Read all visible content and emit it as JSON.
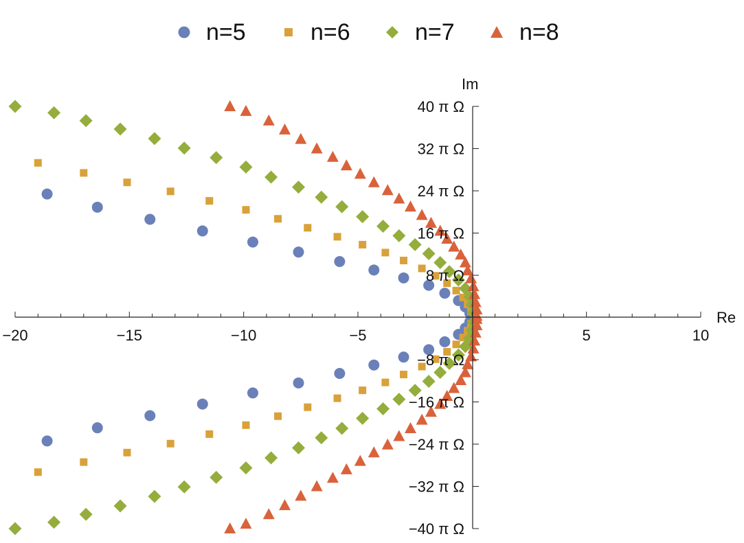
{
  "chart_data": {
    "type": "scatter",
    "xlabel": "Re",
    "ylabel": "Im",
    "xlim": [
      -20,
      10
    ],
    "ylim": [
      -40,
      40
    ],
    "x_ticks": [
      -20,
      -15,
      -10,
      -5,
      5,
      10
    ],
    "x_tick_labels": [
      "−20",
      "−15",
      "−10",
      "−5",
      "5",
      "10"
    ],
    "y_ticks": [
      -40,
      -32,
      -24,
      -16,
      -8,
      8,
      16,
      24,
      32,
      40
    ],
    "y_tick_labels": [
      "−40 π Ω",
      "−32 π Ω",
      "−24 π Ω",
      "−16 π Ω",
      "−8 π Ω",
      "8 π Ω",
      "16 π Ω",
      "24 π Ω",
      "32 π Ω",
      "40 π Ω"
    ],
    "y_unit": "π Ω",
    "legend_position": "top",
    "grid": false,
    "series": [
      {
        "name": "n=5",
        "marker": "circle",
        "color": "#6a80b9",
        "points": [
          [
            -18.6,
            23.4
          ],
          [
            -16.4,
            20.9
          ],
          [
            -14.1,
            18.6
          ],
          [
            -11.8,
            16.4
          ],
          [
            -9.6,
            14.3
          ],
          [
            -7.6,
            12.4
          ],
          [
            -5.8,
            10.6
          ],
          [
            -4.3,
            9.0
          ],
          [
            -3.0,
            7.5
          ],
          [
            -1.9,
            6.1
          ],
          [
            -1.2,
            4.6
          ],
          [
            -0.6,
            3.2
          ],
          [
            -0.3,
            2.0
          ],
          [
            -0.1,
            0.8
          ],
          [
            -18.6,
            -23.4
          ],
          [
            -16.4,
            -20.9
          ],
          [
            -14.1,
            -18.6
          ],
          [
            -11.8,
            -16.4
          ],
          [
            -9.6,
            -14.3
          ],
          [
            -7.6,
            -12.4
          ],
          [
            -5.8,
            -10.6
          ],
          [
            -4.3,
            -9.0
          ],
          [
            -3.0,
            -7.5
          ],
          [
            -1.9,
            -6.1
          ],
          [
            -1.2,
            -4.6
          ],
          [
            -0.6,
            -3.2
          ],
          [
            -0.3,
            -2.0
          ],
          [
            -0.1,
            -0.8
          ]
        ]
      },
      {
        "name": "n=6",
        "marker": "square",
        "color": "#d9a13a",
        "points": [
          [
            -19.0,
            29.3
          ],
          [
            -17.0,
            27.4
          ],
          [
            -15.1,
            25.6
          ],
          [
            -13.2,
            23.9
          ],
          [
            -11.5,
            22.1
          ],
          [
            -9.9,
            20.4
          ],
          [
            -8.5,
            18.7
          ],
          [
            -7.2,
            17.0
          ],
          [
            -5.9,
            15.3
          ],
          [
            -4.8,
            13.8
          ],
          [
            -3.8,
            12.3
          ],
          [
            -3.0,
            10.8
          ],
          [
            -2.2,
            9.3
          ],
          [
            -1.6,
            7.9
          ],
          [
            -1.1,
            6.5
          ],
          [
            -0.7,
            5.1
          ],
          [
            -0.4,
            3.8
          ],
          [
            -0.2,
            2.5
          ],
          [
            -0.05,
            1.2
          ],
          [
            -19.0,
            -29.3
          ],
          [
            -17.0,
            -27.4
          ],
          [
            -15.1,
            -25.6
          ],
          [
            -13.2,
            -23.9
          ],
          [
            -11.5,
            -22.1
          ],
          [
            -9.9,
            -20.4
          ],
          [
            -8.5,
            -18.7
          ],
          [
            -7.2,
            -17.0
          ],
          [
            -5.9,
            -15.3
          ],
          [
            -4.8,
            -13.8
          ],
          [
            -3.8,
            -12.3
          ],
          [
            -3.0,
            -10.8
          ],
          [
            -2.2,
            -9.3
          ],
          [
            -1.6,
            -7.9
          ],
          [
            -1.1,
            -6.5
          ],
          [
            -0.7,
            -5.1
          ],
          [
            -0.4,
            -3.8
          ],
          [
            -0.2,
            -2.5
          ],
          [
            -0.05,
            -1.2
          ]
        ]
      },
      {
        "name": "n=7",
        "marker": "diamond",
        "color": "#94ad3c",
        "points": [
          [
            -20.0,
            40.0
          ],
          [
            -18.3,
            38.8
          ],
          [
            -16.9,
            37.3
          ],
          [
            -15.4,
            35.7
          ],
          [
            -13.9,
            33.9
          ],
          [
            -12.6,
            32.1
          ],
          [
            -11.2,
            30.3
          ],
          [
            -9.9,
            28.5
          ],
          [
            -8.8,
            26.6
          ],
          [
            -7.6,
            24.7
          ],
          [
            -6.6,
            22.8
          ],
          [
            -5.7,
            21.0
          ],
          [
            -4.8,
            19.1
          ],
          [
            -3.9,
            17.3
          ],
          [
            -3.2,
            15.5
          ],
          [
            -2.5,
            13.8
          ],
          [
            -1.9,
            12.1
          ],
          [
            -1.4,
            10.4
          ],
          [
            -1.0,
            8.7
          ],
          [
            -0.6,
            7.1
          ],
          [
            -0.3,
            5.5
          ],
          [
            -0.1,
            3.9
          ],
          [
            0.0,
            2.4
          ],
          [
            0.05,
            0.9
          ],
          [
            -20.0,
            -40.0
          ],
          [
            -18.3,
            -38.8
          ],
          [
            -16.9,
            -37.3
          ],
          [
            -15.4,
            -35.7
          ],
          [
            -13.9,
            -33.9
          ],
          [
            -12.6,
            -32.1
          ],
          [
            -11.2,
            -30.3
          ],
          [
            -9.9,
            -28.5
          ],
          [
            -8.8,
            -26.6
          ],
          [
            -7.6,
            -24.7
          ],
          [
            -6.6,
            -22.8
          ],
          [
            -5.7,
            -21.0
          ],
          [
            -4.8,
            -19.1
          ],
          [
            -3.9,
            -17.3
          ],
          [
            -3.2,
            -15.5
          ],
          [
            -2.5,
            -13.8
          ],
          [
            -1.9,
            -12.1
          ],
          [
            -1.4,
            -10.4
          ],
          [
            -1.0,
            -8.7
          ],
          [
            -0.6,
            -7.1
          ],
          [
            -0.3,
            -5.5
          ],
          [
            -0.1,
            -3.9
          ],
          [
            0.0,
            -2.4
          ],
          [
            0.05,
            -0.9
          ]
        ]
      },
      {
        "name": "n=8",
        "marker": "triangle",
        "color": "#d9623b",
        "points": [
          [
            -10.6,
            40.0
          ],
          [
            -9.9,
            39.1
          ],
          [
            -8.9,
            37.3
          ],
          [
            -8.2,
            35.6
          ],
          [
            -7.5,
            33.8
          ],
          [
            -6.8,
            32.0
          ],
          [
            -6.1,
            30.4
          ],
          [
            -5.5,
            28.8
          ],
          [
            -4.9,
            27.2
          ],
          [
            -4.3,
            25.6
          ],
          [
            -3.7,
            24.1
          ],
          [
            -3.2,
            22.5
          ],
          [
            -2.7,
            21.0
          ],
          [
            -2.2,
            19.4
          ],
          [
            -1.8,
            17.9
          ],
          [
            -1.4,
            16.4
          ],
          [
            -1.1,
            14.9
          ],
          [
            -0.8,
            13.4
          ],
          [
            -0.5,
            11.9
          ],
          [
            -0.3,
            10.4
          ],
          [
            -0.2,
            8.9
          ],
          [
            -0.05,
            7.4
          ],
          [
            0.05,
            5.9
          ],
          [
            0.1,
            4.4
          ],
          [
            0.15,
            2.9
          ],
          [
            0.2,
            1.5
          ],
          [
            0.2,
            0.3
          ],
          [
            -10.6,
            -40.0
          ],
          [
            -9.9,
            -39.1
          ],
          [
            -8.9,
            -37.3
          ],
          [
            -8.2,
            -35.6
          ],
          [
            -7.5,
            -33.8
          ],
          [
            -6.8,
            -32.0
          ],
          [
            -6.1,
            -30.4
          ],
          [
            -5.5,
            -28.8
          ],
          [
            -4.9,
            -27.2
          ],
          [
            -4.3,
            -25.6
          ],
          [
            -3.7,
            -24.1
          ],
          [
            -3.2,
            -22.5
          ],
          [
            -2.7,
            -21.0
          ],
          [
            -2.2,
            -19.4
          ],
          [
            -1.8,
            -17.9
          ],
          [
            -1.4,
            -16.4
          ],
          [
            -1.1,
            -14.9
          ],
          [
            -0.8,
            -13.4
          ],
          [
            -0.5,
            -11.9
          ],
          [
            -0.3,
            -10.4
          ],
          [
            -0.2,
            -8.9
          ],
          [
            -0.05,
            -7.4
          ],
          [
            0.05,
            -5.9
          ],
          [
            0.1,
            -4.4
          ],
          [
            0.15,
            -2.9
          ],
          [
            0.2,
            -1.5
          ],
          [
            0.2,
            -0.3
          ]
        ]
      }
    ]
  }
}
